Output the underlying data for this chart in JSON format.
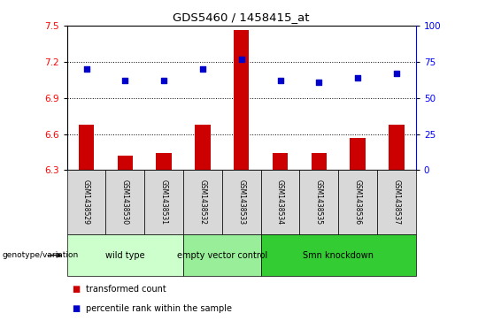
{
  "title": "GDS5460 / 1458415_at",
  "samples": [
    "GSM1438529",
    "GSM1438530",
    "GSM1438531",
    "GSM1438532",
    "GSM1438533",
    "GSM1438534",
    "GSM1438535",
    "GSM1438536",
    "GSM1438537"
  ],
  "transformed_count": [
    6.68,
    6.42,
    6.44,
    6.68,
    7.46,
    6.44,
    6.44,
    6.57,
    6.68
  ],
  "percentile_rank": [
    70,
    62,
    62,
    70,
    77,
    62,
    61,
    64,
    67
  ],
  "ylim_left": [
    6.3,
    7.5
  ],
  "ylim_right": [
    0,
    100
  ],
  "yticks_left": [
    6.3,
    6.6,
    6.9,
    7.2,
    7.5
  ],
  "yticks_right": [
    0,
    25,
    50,
    75,
    100
  ],
  "bar_color": "#cc0000",
  "dot_color": "#0000cc",
  "groups": [
    {
      "label": "wild type",
      "indices": [
        0,
        1,
        2
      ],
      "color": "#ccffcc"
    },
    {
      "label": "empty vector control",
      "indices": [
        3,
        4
      ],
      "color": "#99ee99"
    },
    {
      "label": "Smn knockdown",
      "indices": [
        5,
        6,
        7,
        8
      ],
      "color": "#33cc33"
    }
  ],
  "legend_bar_label": "transformed count",
  "legend_dot_label": "percentile rank within the sample",
  "genotype_label": "genotype/variation",
  "sample_bg_color": "#d8d8d8",
  "plot_bg": "#ffffff"
}
